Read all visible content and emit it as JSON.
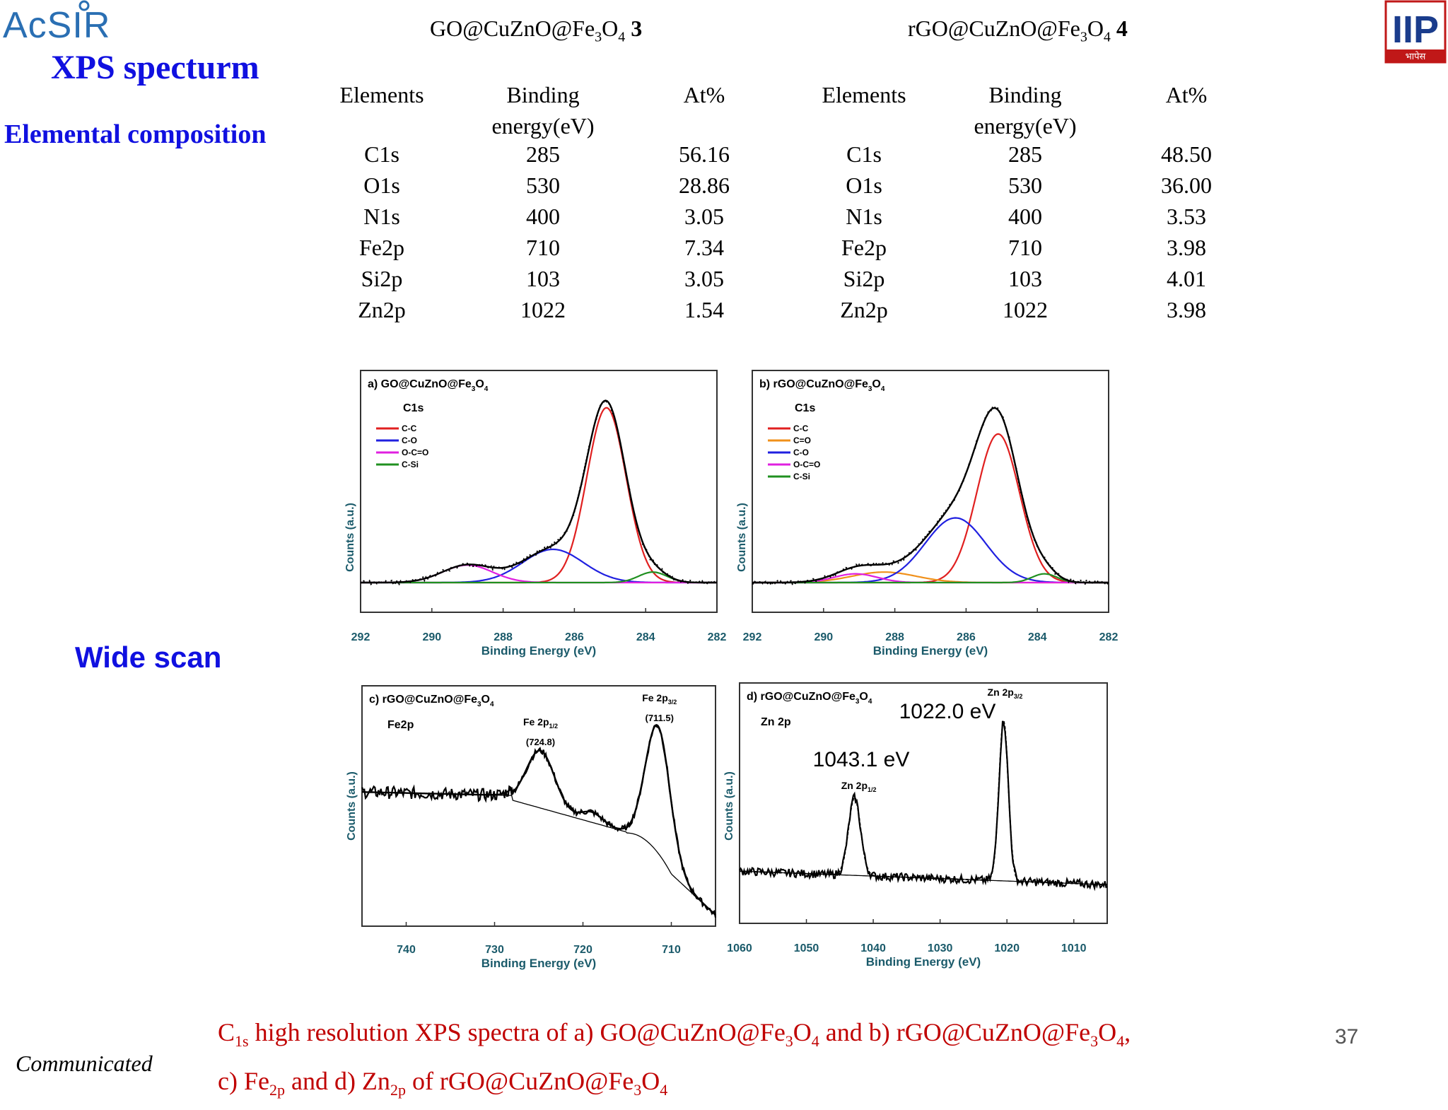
{
  "header": {
    "logo_left_text": "AcSIR",
    "logo_right_text": "IIP",
    "logo_right_subtext": "भापेस"
  },
  "slide": {
    "title": "XPS specturm",
    "subtitle": "Elemental composition",
    "wide_scan_label": "Wide scan",
    "communicated": "Communicated",
    "page_number": "37"
  },
  "tables": [
    {
      "title_prefix": "GO@CuZnO@Fe",
      "title_sub1": "3",
      "title_mid": "O",
      "title_sub2": "4",
      "title_num": "3",
      "headers": [
        "Elements",
        "Binding",
        "energy(eV)",
        "At%"
      ],
      "rows": [
        [
          "C1s",
          "285",
          "56.16"
        ],
        [
          "O1s",
          "530",
          "28.86"
        ],
        [
          "N1s",
          "400",
          "3.05"
        ],
        [
          "Fe2p",
          "710",
          "7.34"
        ],
        [
          "Si2p",
          "103",
          "3.05"
        ],
        [
          "Zn2p",
          "1022",
          "1.54"
        ]
      ]
    },
    {
      "title_prefix": "rGO@CuZnO@Fe",
      "title_sub1": "3",
      "title_mid": "O",
      "title_sub2": "4",
      "title_num": "4",
      "headers": [
        "Elements",
        "Binding",
        "energy(eV)",
        "At%"
      ],
      "rows": [
        [
          "C1s",
          "285",
          "48.50"
        ],
        [
          "O1s",
          "530",
          "36.00"
        ],
        [
          "N1s",
          "400",
          "3.53"
        ],
        [
          "Fe2p",
          "710",
          "3.98"
        ],
        [
          "Si2p",
          "103",
          "4.01"
        ],
        [
          "Zn2p",
          "1022",
          "3.98"
        ]
      ]
    }
  ],
  "caption": {
    "line1_a": "C",
    "line1_sub": "1s",
    "line1_b": " high resolution XPS spectra of a) GO@CuZnO@Fe",
    "line1_sub2": "3",
    "line1_c": "O",
    "line1_sub3": "4",
    "line1_d": " and b) rGO@CuZnO@Fe",
    "line1_sub4": "3",
    "line1_e": "O",
    "line1_sub5": "4",
    "line1_f": ",",
    "line2_a": "c) Fe",
    "line2_sub": "2p",
    "line2_b": " and d) Zn",
    "line2_sub2": "2p",
    "line2_c": " of rGO@CuZnO@Fe",
    "line2_sub3": "3",
    "line2_d": "O",
    "line2_sub4": "4"
  },
  "chart_data": [
    {
      "type": "line",
      "panel": "a",
      "title": "a) GO@CuZnO@Fe3O4",
      "title_main": "a) GO@CuZnO@Fe",
      "title_sub1": "3",
      "title_mid": "O",
      "title_sub2": "4",
      "subtitle": "C1s",
      "xlabel": "Binding Energy (eV)",
      "ylabel": "Counts (a.u.)",
      "xlim": [
        292,
        282
      ],
      "ylim": [
        0,
        1.1
      ],
      "xticks": [
        "292",
        "290",
        "288",
        "286",
        "284",
        "282"
      ],
      "legend_position": "top-left",
      "series": [
        {
          "name": "C-C",
          "color": "#e02020",
          "peak": 285.1,
          "height": 1.0,
          "width": 0.55
        },
        {
          "name": "C-O",
          "color": "#2020e0",
          "peak": 286.6,
          "height": 0.19,
          "width": 0.85
        },
        {
          "name": "O-C=O",
          "color": "#e020e0",
          "peak": 289.0,
          "height": 0.1,
          "width": 0.7
        },
        {
          "name": "C-Si",
          "color": "#209020",
          "peak": 283.8,
          "height": 0.06,
          "width": 0.4
        }
      ],
      "envelope_color": "#000000"
    },
    {
      "type": "line",
      "panel": "b",
      "title": "b) rGO@CuZnO@Fe3O4",
      "title_main": "b) rGO@CuZnO@Fe",
      "title_sub1": "3",
      "title_mid": "O",
      "title_sub2": "4",
      "subtitle": "C1s",
      "xlabel": "Binding Energy (eV)",
      "ylabel": "Counts (a.u.)",
      "xlim": [
        292,
        282
      ],
      "ylim": [
        0,
        1.1
      ],
      "xticks": [
        "292",
        "290",
        "288",
        "286",
        "284",
        "282"
      ],
      "legend_position": "top-left",
      "series": [
        {
          "name": "C-C",
          "color": "#e02020",
          "peak": 285.1,
          "height": 0.85,
          "width": 0.6
        },
        {
          "name": "C=O",
          "color": "#f0901a",
          "peak": 288.3,
          "height": 0.06,
          "width": 0.9
        },
        {
          "name": "C-O",
          "color": "#2020e0",
          "peak": 286.3,
          "height": 0.37,
          "width": 0.85
        },
        {
          "name": "O-C=O",
          "color": "#e020e0",
          "peak": 289.1,
          "height": 0.05,
          "width": 0.6
        },
        {
          "name": "C-Si",
          "color": "#209020",
          "peak": 283.8,
          "height": 0.05,
          "width": 0.35
        }
      ],
      "envelope_color": "#000000"
    },
    {
      "type": "line",
      "panel": "c",
      "title": "c) rGO@CuZnO@Fe3O4",
      "title_main": "c) rGO@CuZnO@Fe",
      "title_sub1": "3",
      "title_mid": "O",
      "title_sub2": "4",
      "subtitle": "Fe2p",
      "xlabel": "Binding Energy (eV)",
      "ylabel": "Counts (a.u.)",
      "xlim": [
        745,
        705
      ],
      "xticks_values": [
        740,
        730,
        720,
        710
      ],
      "xticks": [
        "740",
        "730",
        "720",
        "710"
      ],
      "annotations": [
        {
          "label_main": "Fe 2p",
          "label_sub": "1/2",
          "value": "(724.8)",
          "x": 724.8
        },
        {
          "label_main": "Fe 2p",
          "label_sub": "3/2",
          "value": "(711.5)",
          "x": 711.5
        }
      ]
    },
    {
      "type": "line",
      "panel": "d",
      "title": "d) rGO@CuZnO@Fe3O4",
      "title_main": "d) rGO@CuZnO@Fe",
      "title_sub1": "3",
      "title_mid": "O",
      "title_sub2": "4",
      "subtitle": "Zn 2p",
      "xlabel": "Binding Energy (eV)",
      "ylabel": "Counts (a.u.)",
      "xlim": [
        1060,
        1005
      ],
      "xticks_values": [
        1060,
        1050,
        1040,
        1030,
        1020,
        1010
      ],
      "xticks": [
        "1060",
        "1050",
        "1040",
        "1030",
        "1020",
        "1010"
      ],
      "annotations": [
        {
          "label_main": "Zn 2p",
          "label_sub": "3/2",
          "value": "1022.0 eV",
          "x": 1020.5
        },
        {
          "label_main": "Zn 2p",
          "label_sub": "1/2",
          "value": "1043.1 eV",
          "x": 1042.8
        }
      ]
    }
  ]
}
